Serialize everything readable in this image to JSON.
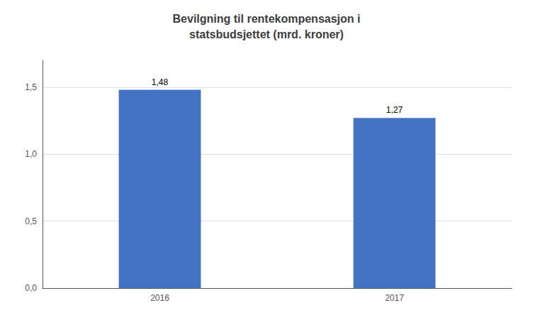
{
  "chart_data": {
    "type": "bar",
    "title": "Bevilgning til rentekompensasjon i\nstatsbudsjettet (mrd. kroner)",
    "categories": [
      "2016",
      "2017"
    ],
    "values": [
      1.48,
      1.27
    ],
    "value_labels": [
      "1,48",
      "1,27"
    ],
    "data_labels": true,
    "color": "#4472C4",
    "ylim": [
      0,
      1.7
    ],
    "yticks": [
      {
        "value": 0.0,
        "label": "0,0"
      },
      {
        "value": 0.5,
        "label": "0,5"
      },
      {
        "value": 1.0,
        "label": "1,0"
      },
      {
        "value": 1.5,
        "label": "1,5"
      }
    ],
    "grid": true
  }
}
